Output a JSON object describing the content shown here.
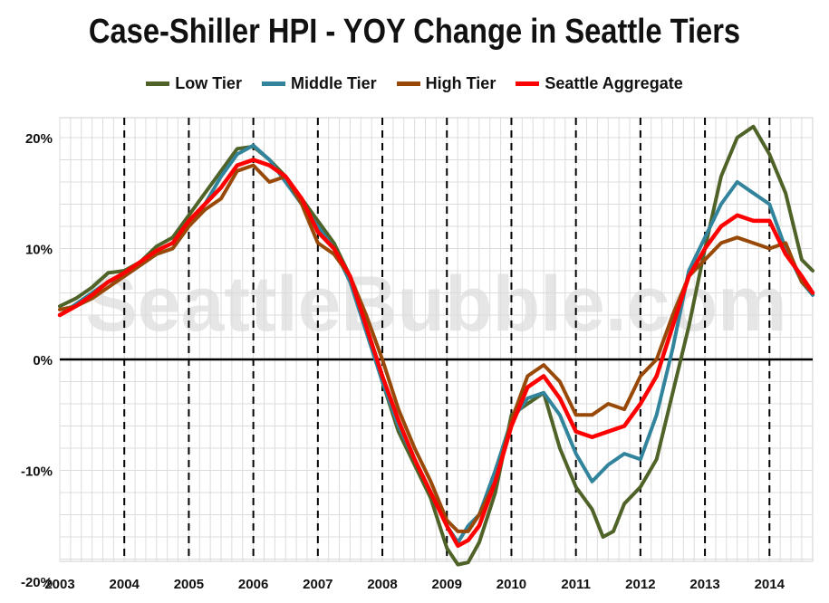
{
  "chart_data": {
    "type": "line",
    "title": "Case-Shiller HPI - YOY Change in Seattle Tiers",
    "xlabel": "",
    "ylabel": "",
    "watermark": "SeattleBubble.com",
    "ylim": [
      -20,
      20
    ],
    "xlim": [
      2003,
      2014.67
    ],
    "x_ticks": [
      "2003",
      "2004",
      "2005",
      "2006",
      "2007",
      "2008",
      "2009",
      "2010",
      "2011",
      "2012",
      "2013",
      "2014"
    ],
    "y_ticks": [
      "20%",
      "10%",
      "0%",
      "-10%",
      "-20%"
    ],
    "y_tick_values": [
      20,
      10,
      0,
      -10,
      -20
    ],
    "grid": "minor gridlines on; dashed vertical lines at each year",
    "legend_position": "top",
    "series": [
      {
        "name": "Low Tier",
        "color": "#4f6228",
        "points": [
          [
            2003.0,
            4.8
          ],
          [
            2003.25,
            5.5
          ],
          [
            2003.5,
            6.5
          ],
          [
            2003.75,
            7.8
          ],
          [
            2004.0,
            8.0
          ],
          [
            2004.25,
            8.8
          ],
          [
            2004.5,
            10.2
          ],
          [
            2004.75,
            11.0
          ],
          [
            2005.0,
            13.0
          ],
          [
            2005.25,
            15.0
          ],
          [
            2005.5,
            17.0
          ],
          [
            2005.75,
            19.0
          ],
          [
            2006.0,
            19.2
          ],
          [
            2006.25,
            18.0
          ],
          [
            2006.5,
            16.5
          ],
          [
            2006.75,
            14.5
          ],
          [
            2007.0,
            12.5
          ],
          [
            2007.25,
            10.5
          ],
          [
            2007.5,
            7.5
          ],
          [
            2007.75,
            3.0
          ],
          [
            2008.0,
            -2.0
          ],
          [
            2008.25,
            -6.5
          ],
          [
            2008.5,
            -9.5
          ],
          [
            2008.75,
            -12.5
          ],
          [
            2009.0,
            -17.0
          ],
          [
            2009.17,
            -18.5
          ],
          [
            2009.33,
            -18.3
          ],
          [
            2009.5,
            -16.5
          ],
          [
            2009.75,
            -12.0
          ],
          [
            2010.0,
            -5.0
          ],
          [
            2010.25,
            -4.0
          ],
          [
            2010.5,
            -3.0
          ],
          [
            2010.75,
            -8.0
          ],
          [
            2011.0,
            -11.5
          ],
          [
            2011.25,
            -13.5
          ],
          [
            2011.42,
            -16.0
          ],
          [
            2011.58,
            -15.5
          ],
          [
            2011.75,
            -13.0
          ],
          [
            2012.0,
            -11.5
          ],
          [
            2012.25,
            -9.0
          ],
          [
            2012.5,
            -3.0
          ],
          [
            2012.75,
            3.0
          ],
          [
            2013.0,
            10.0
          ],
          [
            2013.25,
            16.5
          ],
          [
            2013.5,
            20.0
          ],
          [
            2013.75,
            21.0
          ],
          [
            2014.0,
            18.5
          ],
          [
            2014.25,
            15.0
          ],
          [
            2014.5,
            9.0
          ],
          [
            2014.67,
            8.0
          ]
        ]
      },
      {
        "name": "Middle Tier",
        "color": "#31849b",
        "points": [
          [
            2003.0,
            4.0
          ],
          [
            2003.25,
            5.0
          ],
          [
            2003.5,
            6.0
          ],
          [
            2003.75,
            7.0
          ],
          [
            2004.0,
            7.5
          ],
          [
            2004.25,
            8.5
          ],
          [
            2004.5,
            9.5
          ],
          [
            2004.75,
            10.0
          ],
          [
            2005.0,
            12.0
          ],
          [
            2005.25,
            14.0
          ],
          [
            2005.5,
            16.5
          ],
          [
            2005.75,
            18.5
          ],
          [
            2006.0,
            19.3
          ],
          [
            2006.25,
            18.0
          ],
          [
            2006.5,
            16.0
          ],
          [
            2006.75,
            14.0
          ],
          [
            2007.0,
            12.0
          ],
          [
            2007.25,
            10.0
          ],
          [
            2007.5,
            7.0
          ],
          [
            2007.75,
            2.5
          ],
          [
            2008.0,
            -2.0
          ],
          [
            2008.25,
            -6.0
          ],
          [
            2008.5,
            -9.0
          ],
          [
            2008.75,
            -12.0
          ],
          [
            2009.0,
            -15.0
          ],
          [
            2009.17,
            -16.5
          ],
          [
            2009.33,
            -15.0
          ],
          [
            2009.5,
            -14.0
          ],
          [
            2009.75,
            -10.0
          ],
          [
            2010.0,
            -5.5
          ],
          [
            2010.25,
            -3.5
          ],
          [
            2010.5,
            -3.0
          ],
          [
            2010.75,
            -5.0
          ],
          [
            2011.0,
            -8.5
          ],
          [
            2011.25,
            -11.0
          ],
          [
            2011.5,
            -9.5
          ],
          [
            2011.75,
            -8.5
          ],
          [
            2012.0,
            -9.0
          ],
          [
            2012.25,
            -5.0
          ],
          [
            2012.5,
            1.0
          ],
          [
            2012.75,
            8.0
          ],
          [
            2013.0,
            11.0
          ],
          [
            2013.25,
            14.0
          ],
          [
            2013.5,
            16.0
          ],
          [
            2013.75,
            15.0
          ],
          [
            2014.0,
            14.0
          ],
          [
            2014.25,
            10.0
          ],
          [
            2014.5,
            7.0
          ],
          [
            2014.67,
            5.8
          ]
        ]
      },
      {
        "name": "High Tier",
        "color": "#984807",
        "points": [
          [
            2003.0,
            4.5
          ],
          [
            2003.25,
            4.8
          ],
          [
            2003.5,
            5.5
          ],
          [
            2003.75,
            6.5
          ],
          [
            2004.0,
            7.5
          ],
          [
            2004.25,
            8.5
          ],
          [
            2004.5,
            9.5
          ],
          [
            2004.75,
            10.0
          ],
          [
            2005.0,
            12.0
          ],
          [
            2005.25,
            13.5
          ],
          [
            2005.5,
            14.5
          ],
          [
            2005.75,
            17.0
          ],
          [
            2006.0,
            17.5
          ],
          [
            2006.25,
            16.0
          ],
          [
            2006.5,
            16.5
          ],
          [
            2006.75,
            14.0
          ],
          [
            2007.0,
            10.5
          ],
          [
            2007.25,
            9.5
          ],
          [
            2007.5,
            7.5
          ],
          [
            2007.75,
            4.0
          ],
          [
            2008.0,
            0.0
          ],
          [
            2008.25,
            -4.5
          ],
          [
            2008.5,
            -8.0
          ],
          [
            2008.75,
            -11.0
          ],
          [
            2009.0,
            -14.5
          ],
          [
            2009.17,
            -15.5
          ],
          [
            2009.33,
            -15.5
          ],
          [
            2009.5,
            -14.0
          ],
          [
            2009.75,
            -11.0
          ],
          [
            2010.0,
            -5.5
          ],
          [
            2010.25,
            -1.5
          ],
          [
            2010.5,
            -0.5
          ],
          [
            2010.75,
            -2.0
          ],
          [
            2011.0,
            -5.0
          ],
          [
            2011.25,
            -5.0
          ],
          [
            2011.5,
            -4.0
          ],
          [
            2011.75,
            -4.5
          ],
          [
            2012.0,
            -1.5
          ],
          [
            2012.25,
            0.0
          ],
          [
            2012.5,
            4.0
          ],
          [
            2012.75,
            7.5
          ],
          [
            2013.0,
            9.0
          ],
          [
            2013.25,
            10.5
          ],
          [
            2013.5,
            11.0
          ],
          [
            2013.75,
            10.5
          ],
          [
            2014.0,
            10.0
          ],
          [
            2014.25,
            10.5
          ],
          [
            2014.5,
            7.0
          ],
          [
            2014.67,
            6.0
          ]
        ]
      },
      {
        "name": "Seattle Aggregate",
        "color": "#ff0000",
        "points": [
          [
            2003.0,
            4.0
          ],
          [
            2003.25,
            4.8
          ],
          [
            2003.5,
            5.8
          ],
          [
            2003.75,
            7.0
          ],
          [
            2004.0,
            7.8
          ],
          [
            2004.25,
            8.8
          ],
          [
            2004.5,
            9.8
          ],
          [
            2004.75,
            10.5
          ],
          [
            2005.0,
            12.5
          ],
          [
            2005.25,
            14.0
          ],
          [
            2005.5,
            15.5
          ],
          [
            2005.75,
            17.5
          ],
          [
            2006.0,
            18.0
          ],
          [
            2006.25,
            17.5
          ],
          [
            2006.5,
            16.5
          ],
          [
            2006.75,
            14.5
          ],
          [
            2007.0,
            11.5
          ],
          [
            2007.25,
            10.0
          ],
          [
            2007.5,
            7.5
          ],
          [
            2007.75,
            3.0
          ],
          [
            2008.0,
            -1.5
          ],
          [
            2008.25,
            -5.5
          ],
          [
            2008.5,
            -9.0
          ],
          [
            2008.75,
            -12.0
          ],
          [
            2009.0,
            -15.0
          ],
          [
            2009.17,
            -16.8
          ],
          [
            2009.33,
            -16.3
          ],
          [
            2009.5,
            -15.0
          ],
          [
            2009.75,
            -11.0
          ],
          [
            2010.0,
            -6.0
          ],
          [
            2010.25,
            -2.5
          ],
          [
            2010.5,
            -1.5
          ],
          [
            2010.75,
            -3.5
          ],
          [
            2011.0,
            -6.5
          ],
          [
            2011.25,
            -7.0
          ],
          [
            2011.5,
            -6.5
          ],
          [
            2011.75,
            -6.0
          ],
          [
            2012.0,
            -4.0
          ],
          [
            2012.25,
            -1.5
          ],
          [
            2012.5,
            3.0
          ],
          [
            2012.75,
            7.5
          ],
          [
            2013.0,
            10.0
          ],
          [
            2013.25,
            12.0
          ],
          [
            2013.5,
            13.0
          ],
          [
            2013.75,
            12.5
          ],
          [
            2014.0,
            12.5
          ],
          [
            2014.25,
            9.5
          ],
          [
            2014.5,
            7.5
          ],
          [
            2014.67,
            6.0
          ]
        ]
      }
    ]
  }
}
